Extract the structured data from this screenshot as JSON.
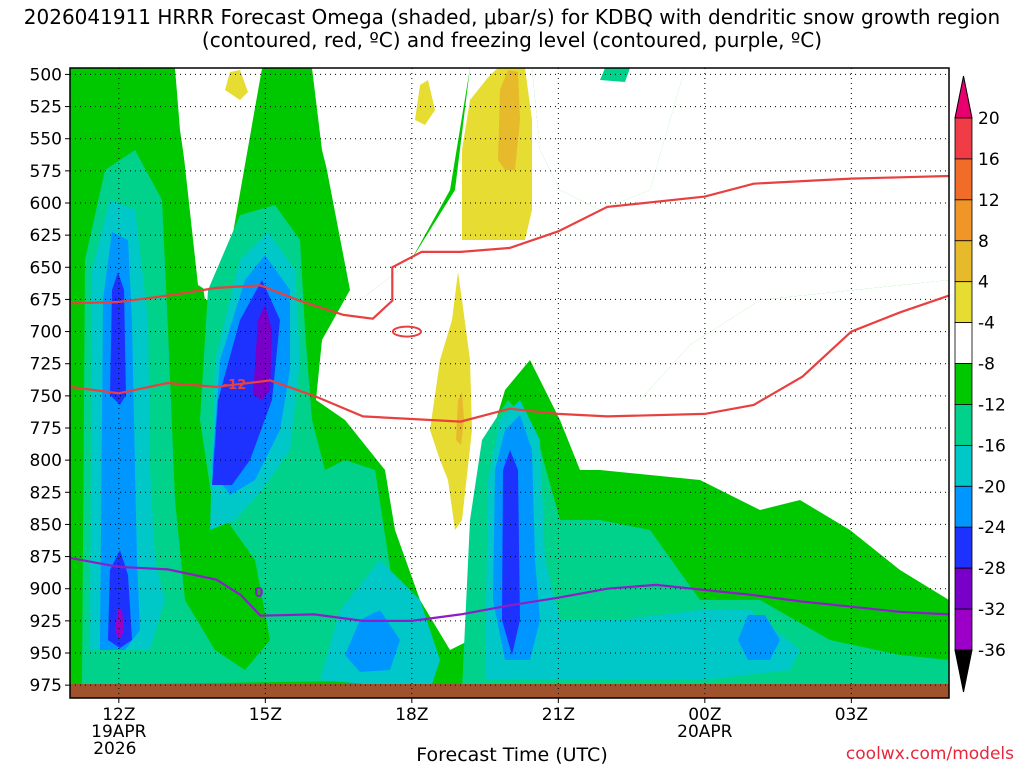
{
  "chart_data": {
    "type": "contour",
    "title": "2026041911 HRRR Forecast Omega (shaded, μbar/s) for KDBQ with dendritic snow growth region (contoured, red, ºC) and freezing level (contoured, purple, ºC)",
    "xlabel": "Forecast Time (UTC)",
    "credit": "coolwx.com/models",
    "y_axis": {
      "label": "",
      "scale": "pressure (inverted)",
      "ticks": [
        "500",
        "525",
        "550",
        "575",
        "600",
        "625",
        "650",
        "675",
        "700",
        "725",
        "750",
        "775",
        "800",
        "825",
        "850",
        "875",
        "900",
        "925",
        "950",
        "975"
      ],
      "range": [
        985,
        495
      ]
    },
    "x_axis": {
      "ticks": [
        {
          "label": "12Z",
          "hour": 12,
          "date": "19APR",
          "year": "2026"
        },
        {
          "label": "15Z",
          "hour": 15
        },
        {
          "label": "18Z",
          "hour": 18
        },
        {
          "label": "21Z",
          "hour": 21
        },
        {
          "label": "00Z",
          "hour": 24,
          "date": "20APR"
        },
        {
          "label": "03Z",
          "hour": 27
        }
      ],
      "range": [
        11,
        29
      ]
    },
    "colorbar": {
      "levels": [
        "20",
        "16",
        "12",
        "8",
        "4",
        "-4",
        "-8",
        "-12",
        "-16",
        "-20",
        "-24",
        "-28",
        "-32",
        "-36"
      ],
      "colors": [
        "#e8006e",
        "#f03c46",
        "#f06c28",
        "#f09628",
        "#e6ba2a",
        "#e6dc32",
        "#ffffff",
        "#00c800",
        "#00d28c",
        "#00c8c8",
        "#0096ff",
        "#1e32ff",
        "#7800c8",
        "#9c00c8",
        "#b4b4b4",
        "#000000"
      ]
    },
    "contours": [
      {
        "color": "#e84040",
        "label": "",
        "points": [
          [
            11,
            678
          ],
          [
            12,
            677
          ],
          [
            13,
            672
          ],
          [
            14,
            666
          ],
          [
            14.9,
            664
          ],
          [
            15.7,
            676
          ],
          [
            16.6,
            687
          ],
          [
            17.2,
            690
          ],
          [
            17.6,
            676
          ],
          [
            17.6,
            650
          ],
          [
            18.2,
            638
          ],
          [
            19,
            638
          ],
          [
            20,
            635
          ],
          [
            21,
            622
          ],
          [
            22,
            603
          ],
          [
            24,
            595
          ],
          [
            25,
            585
          ],
          [
            26,
            583
          ],
          [
            27,
            581
          ],
          [
            28,
            580
          ],
          [
            29,
            579
          ]
        ]
      },
      {
        "color": "#e84040",
        "label": "-12",
        "points": [
          [
            11,
            743
          ],
          [
            12,
            748
          ],
          [
            13,
            740
          ],
          [
            14,
            743
          ],
          [
            15.1,
            738
          ],
          [
            16,
            750
          ],
          [
            17,
            766
          ],
          [
            18,
            768
          ],
          [
            19,
            770
          ],
          [
            20,
            760
          ],
          [
            21,
            764
          ],
          [
            22,
            766
          ],
          [
            24,
            764
          ],
          [
            25,
            757
          ],
          [
            26,
            735
          ],
          [
            27,
            700
          ],
          [
            28,
            685
          ],
          [
            29,
            672
          ]
        ]
      },
      {
        "color": "#8c1ec8",
        "label": "0",
        "points": [
          [
            11,
            876
          ],
          [
            12,
            883
          ],
          [
            13,
            885
          ],
          [
            14,
            893
          ],
          [
            14.5,
            905
          ],
          [
            14.9,
            921
          ],
          [
            16,
            920
          ],
          [
            17,
            925
          ],
          [
            18,
            925
          ],
          [
            19,
            920
          ],
          [
            20,
            913
          ],
          [
            21,
            907
          ],
          [
            22,
            900
          ],
          [
            23,
            897
          ],
          [
            24,
            901
          ],
          [
            25,
            905
          ],
          [
            26,
            910
          ],
          [
            27,
            914
          ],
          [
            28,
            918
          ],
          [
            29,
            920
          ]
        ]
      }
    ]
  }
}
